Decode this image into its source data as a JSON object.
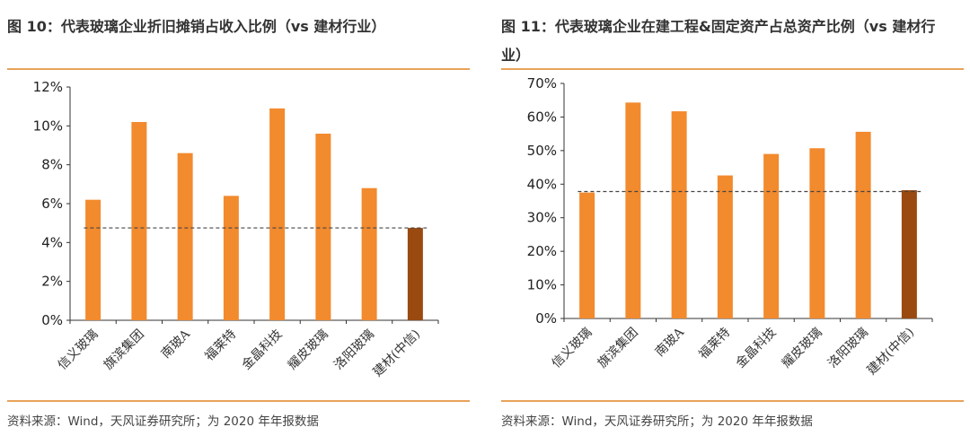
{
  "charts": [
    {
      "title": "图 10：代表玻璃企业折旧摊销占收入比例（vs 建材行业）",
      "source": "资料来源：Wind，天风证券研究所；为 2020 年年报数据"
    },
    {
      "title": "图 11：代表玻璃企业在建工程&固定资产占总资产比例（vs 建材行业）",
      "source": "资料来源：Wind，天风证券研究所；为 2020 年年报数据"
    }
  ],
  "chart_data": [
    {
      "type": "bar",
      "title": "图 10：代表玻璃企业折旧摊销占收入比例（vs 建材行业）",
      "categories": [
        "信义玻璃",
        "旗滨集团",
        "南玻A",
        "福莱特",
        "金晶科技",
        "耀皮玻璃",
        "洛阳玻璃",
        "建材(中信)"
      ],
      "values": [
        6.2,
        10.2,
        8.6,
        6.4,
        10.9,
        9.6,
        6.8,
        4.75
      ],
      "reference_value": 4.75,
      "ylim": [
        0,
        12
      ],
      "yticks": [
        0,
        2,
        4,
        6,
        8,
        10,
        12
      ],
      "ytick_labels": [
        "0%",
        "2%",
        "4%",
        "6%",
        "8%",
        "10%",
        "12%"
      ],
      "xlabel": "",
      "ylabel": "",
      "colors": {
        "bar": "#f28a2e",
        "highlight": "#9a4a10",
        "reference_line": "#444444"
      },
      "grid": false
    },
    {
      "type": "bar",
      "title": "图 11：代表玻璃企业在建工程&固定资产占总资产比例（vs 建材行业）",
      "categories": [
        "信义玻璃",
        "旗滨集团",
        "南玻A",
        "福莱特",
        "金晶科技",
        "耀皮玻璃",
        "洛阳玻璃",
        "建材(中信)"
      ],
      "values": [
        37.5,
        64.3,
        61.7,
        42.6,
        49.0,
        50.7,
        55.6,
        38.2
      ],
      "reference_value": 37.8,
      "ylim": [
        0,
        70
      ],
      "yticks": [
        0,
        10,
        20,
        30,
        40,
        50,
        60,
        70
      ],
      "ytick_labels": [
        "0%",
        "10%",
        "20%",
        "30%",
        "40%",
        "50%",
        "60%",
        "70%"
      ],
      "xlabel": "",
      "ylabel": "",
      "colors": {
        "bar": "#f28a2e",
        "highlight": "#9a4a10",
        "reference_line": "#444444"
      },
      "grid": false
    }
  ]
}
